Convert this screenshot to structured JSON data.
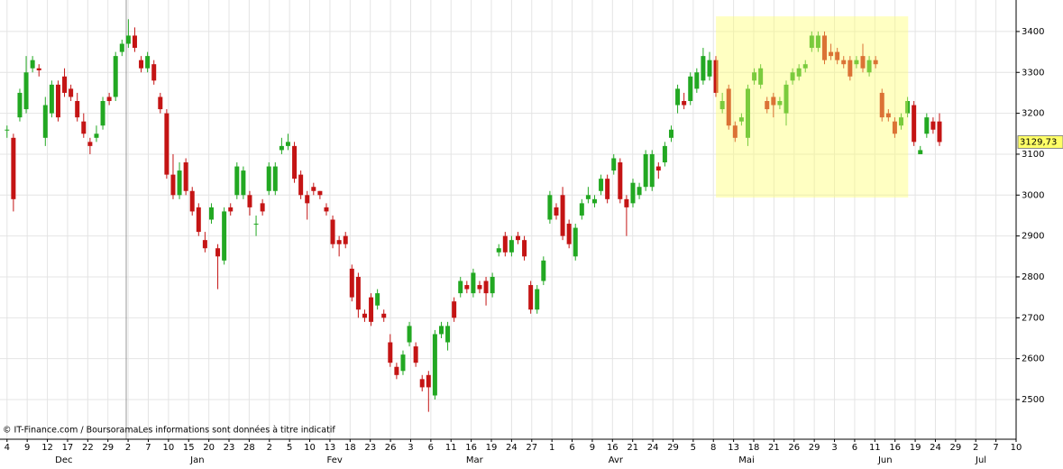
{
  "chart_data": {
    "type": "candlestick",
    "up_color": "#22a822",
    "down_color": "#c41414",
    "grid": true,
    "open": [
      3160,
      3140,
      3190,
      3210,
      3310,
      3310,
      3140,
      3200,
      3270,
      3290,
      3260,
      3230,
      3180,
      3130,
      3140,
      3170,
      3240,
      3240,
      3350,
      3370,
      3390,
      3330,
      3310,
      3320,
      3240,
      3200,
      3050,
      3000,
      3080,
      3010,
      2970,
      2890,
      2940,
      2870,
      2840,
      2970,
      3000,
      3000,
      3000,
      2930,
      2980,
      3010,
      3010,
      3110,
      3120,
      3120,
      3050,
      3000,
      3020,
      3010,
      2970,
      2940,
      2890,
      2900,
      2820,
      2800,
      2710,
      2750,
      2730,
      2710,
      2640,
      2580,
      2570,
      2640,
      2630,
      2550,
      2560,
      2510,
      2660,
      2640,
      2740,
      2760,
      2780,
      2760,
      2780,
      2790,
      2760,
      2860,
      2900,
      2860,
      2900,
      2890,
      2780,
      2720,
      2790,
      2940,
      2970,
      3000,
      2930,
      2850,
      2950,
      2990,
      2980,
      3010,
      3040,
      3060,
      3080,
      2990,
      2980,
      3000,
      3020,
      3020,
      3070,
      3080,
      3140,
      3220,
      3230,
      3230,
      3260,
      3280,
      3290,
      3330,
      3210,
      3260,
      3170,
      3180,
      3140,
      3280,
      3270,
      3230,
      3240,
      3220,
      3200,
      3280,
      3290,
      3310,
      3360,
      3360,
      3390,
      3350,
      3350,
      3330,
      3330,
      3320,
      3340,
      3300,
      3330,
      3250,
      3200,
      3180,
      3170,
      3200,
      3220,
      3100,
      3150,
      3180,
      3180
    ],
    "high": [
      3170,
      3150,
      3260,
      3340,
      3340,
      3320,
      3240,
      3280,
      3280,
      3310,
      3270,
      3250,
      3200,
      3140,
      3170,
      3240,
      3250,
      3350,
      3380,
      3430,
      3410,
      3340,
      3350,
      3330,
      3250,
      3210,
      3100,
      3080,
      3090,
      3020,
      2980,
      2910,
      2980,
      2880,
      2970,
      2980,
      3080,
      3070,
      3010,
      2950,
      2990,
      3080,
      3080,
      3140,
      3150,
      3130,
      3060,
      3010,
      3030,
      3010,
      2980,
      2950,
      2900,
      2910,
      2830,
      2810,
      2720,
      2760,
      2770,
      2720,
      2660,
      2590,
      2620,
      2690,
      2640,
      2560,
      2570,
      2670,
      2690,
      2690,
      2750,
      2800,
      2790,
      2820,
      2790,
      2800,
      2810,
      2880,
      2910,
      2900,
      2910,
      2900,
      2790,
      2780,
      2850,
      3010,
      2980,
      3020,
      2940,
      2930,
      2990,
      3020,
      3000,
      3050,
      3050,
      3100,
      3090,
      3000,
      3040,
      3030,
      3110,
      3110,
      3080,
      3130,
      3170,
      3270,
      3250,
      3300,
      3310,
      3360,
      3350,
      3340,
      3250,
      3270,
      3180,
      3200,
      3270,
      3310,
      3320,
      3240,
      3250,
      3240,
      3280,
      3310,
      3320,
      3330,
      3400,
      3400,
      3400,
      3370,
      3360,
      3340,
      3340,
      3340,
      3370,
      3340,
      3340,
      3260,
      3210,
      3190,
      3200,
      3240,
      3230,
      3120,
      3200,
      3190,
      3200
    ],
    "low": [
      3140,
      2960,
      3180,
      3200,
      3300,
      3290,
      3120,
      3190,
      3180,
      3240,
      3230,
      3180,
      3140,
      3100,
      3130,
      3160,
      3220,
      3230,
      3340,
      3360,
      3350,
      3300,
      3300,
      3270,
      3200,
      3040,
      2990,
      2990,
      3000,
      2950,
      2900,
      2860,
      2930,
      2770,
      2830,
      2950,
      2990,
      2990,
      2950,
      2900,
      2950,
      3000,
      3000,
      3100,
      3110,
      3030,
      2990,
      2940,
      3000,
      2990,
      2950,
      2870,
      2850,
      2870,
      2740,
      2700,
      2690,
      2680,
      2720,
      2690,
      2580,
      2550,
      2560,
      2630,
      2580,
      2520,
      2470,
      2500,
      2650,
      2620,
      2690,
      2750,
      2760,
      2750,
      2760,
      2730,
      2750,
      2850,
      2850,
      2850,
      2880,
      2840,
      2710,
      2710,
      2780,
      2930,
      2940,
      2890,
      2870,
      2840,
      2940,
      2980,
      2970,
      3000,
      2980,
      3050,
      2980,
      2900,
      2970,
      2990,
      3010,
      3010,
      3040,
      3070,
      3130,
      3200,
      3210,
      3220,
      3250,
      3270,
      3280,
      3240,
      3200,
      3160,
      3130,
      3170,
      3120,
      3270,
      3260,
      3200,
      3190,
      3210,
      3170,
      3270,
      3280,
      3300,
      3350,
      3350,
      3320,
      3330,
      3320,
      3310,
      3280,
      3310,
      3300,
      3290,
      3310,
      3180,
      3180,
      3140,
      3160,
      3190,
      3120,
      3100,
      3140,
      3150,
      3120
    ],
    "close": [
      3160,
      2990,
      3250,
      3300,
      3330,
      3305,
      3220,
      3270,
      3190,
      3250,
      3240,
      3190,
      3150,
      3120,
      3150,
      3230,
      3230,
      3340,
      3370,
      3390,
      3360,
      3310,
      3340,
      3280,
      3210,
      3050,
      3000,
      3060,
      3010,
      2960,
      2910,
      2870,
      2970,
      2850,
      2960,
      2960,
      3070,
      3060,
      2970,
      2930,
      2960,
      3070,
      3070,
      3120,
      3130,
      3040,
      3000,
      2980,
      3010,
      3000,
      2960,
      2880,
      2880,
      2880,
      2750,
      2720,
      2700,
      2690,
      2760,
      2700,
      2590,
      2560,
      2610,
      2680,
      2590,
      2530,
      2530,
      2660,
      2680,
      2680,
      2700,
      2790,
      2770,
      2810,
      2770,
      2760,
      2800,
      2870,
      2860,
      2890,
      2890,
      2850,
      2720,
      2770,
      2840,
      3000,
      2950,
      2900,
      2880,
      2920,
      2980,
      3000,
      2990,
      3040,
      2990,
      3090,
      2990,
      2970,
      3030,
      3020,
      3100,
      3100,
      3060,
      3120,
      3160,
      3260,
      3220,
      3290,
      3300,
      3340,
      3330,
      3250,
      3230,
      3170,
      3140,
      3190,
      3260,
      3300,
      3310,
      3210,
      3220,
      3230,
      3270,
      3300,
      3310,
      3320,
      3390,
      3390,
      3330,
      3340,
      3330,
      3320,
      3290,
      3330,
      3310,
      3330,
      3320,
      3190,
      3190,
      3150,
      3190,
      3230,
      3130,
      3110,
      3190,
      3160,
      3129.73
    ],
    "xlim": [
      -1.1,
      158.0
    ],
    "ylim": [
      2403,
      3477
    ],
    "yticks": [
      2500,
      2600,
      2700,
      2800,
      2900,
      3000,
      3100,
      3200,
      3300,
      3400
    ],
    "xticks": [
      {
        "value": 0,
        "label": "4"
      },
      {
        "value": 3.16,
        "label": "9"
      },
      {
        "value": 6.32,
        "label": "12"
      },
      {
        "value": 9.48,
        "label": "17"
      },
      {
        "value": 12.64,
        "label": "22"
      },
      {
        "value": 15.8,
        "label": "29"
      },
      {
        "value": 18.96,
        "label": "2"
      },
      {
        "value": 22.12,
        "label": "7"
      },
      {
        "value": 25.28,
        "label": "10"
      },
      {
        "value": 28.44,
        "label": "15"
      },
      {
        "value": 31.6,
        "label": "20"
      },
      {
        "value": 34.76,
        "label": "23"
      },
      {
        "value": 37.92,
        "label": "28"
      },
      {
        "value": 41.08,
        "label": "2"
      },
      {
        "value": 44.24,
        "label": "5"
      },
      {
        "value": 47.4,
        "label": "10"
      },
      {
        "value": 50.56,
        "label": "13"
      },
      {
        "value": 53.72,
        "label": "18"
      },
      {
        "value": 56.88,
        "label": "23"
      },
      {
        "value": 60.04,
        "label": "26"
      },
      {
        "value": 63.2,
        "label": "3"
      },
      {
        "value": 66.36,
        "label": "6"
      },
      {
        "value": 69.52,
        "label": "11"
      },
      {
        "value": 72.68,
        "label": "16"
      },
      {
        "value": 75.84,
        "label": "19"
      },
      {
        "value": 79.0,
        "label": "24"
      },
      {
        "value": 82.16,
        "label": "27"
      },
      {
        "value": 85.32,
        "label": "1"
      },
      {
        "value": 88.48,
        "label": "6"
      },
      {
        "value": 91.64,
        "label": "9"
      },
      {
        "value": 94.8,
        "label": "16"
      },
      {
        "value": 97.96,
        "label": "21"
      },
      {
        "value": 101.12,
        "label": "24"
      },
      {
        "value": 104.28,
        "label": "29"
      },
      {
        "value": 107.44,
        "label": "5"
      },
      {
        "value": 110.6,
        "label": "8"
      },
      {
        "value": 113.76,
        "label": "13"
      },
      {
        "value": 116.92,
        "label": "18"
      },
      {
        "value": 120.08,
        "label": "21"
      },
      {
        "value": 123.24,
        "label": "26"
      },
      {
        "value": 126.4,
        "label": "29"
      },
      {
        "value": 129.56,
        "label": "3"
      },
      {
        "value": 132.72,
        "label": "6"
      },
      {
        "value": 135.88,
        "label": "11"
      },
      {
        "value": 139.04,
        "label": "16"
      },
      {
        "value": 142.2,
        "label": "19"
      },
      {
        "value": 145.36,
        "label": "24"
      },
      {
        "value": 148.52,
        "label": "29"
      },
      {
        "value": 151.68,
        "label": "2"
      },
      {
        "value": 154.84,
        "label": "7"
      },
      {
        "value": 158.0,
        "label": "10"
      }
    ],
    "months": [
      {
        "value": 8.9,
        "label": "Dec"
      },
      {
        "value": 29.8,
        "label": "Jan"
      },
      {
        "value": 51.3,
        "label": "Fev"
      },
      {
        "value": 73.2,
        "label": "Mar"
      },
      {
        "value": 95.3,
        "label": "Avr"
      },
      {
        "value": 115.8,
        "label": "Mai"
      },
      {
        "value": 137.5,
        "label": "Jun"
      },
      {
        "value": 152.5,
        "label": "Jul"
      }
    ],
    "highlight": {
      "x": [
        111.0,
        141.1
      ],
      "y": [
        2994,
        3437
      ],
      "color": "#ffff66"
    },
    "last_label": {
      "value": 3129.73,
      "label": "3129,73"
    },
    "source": "© IT-Finance.com / BoursoramaLes informations sont données à titre indicatif"
  }
}
